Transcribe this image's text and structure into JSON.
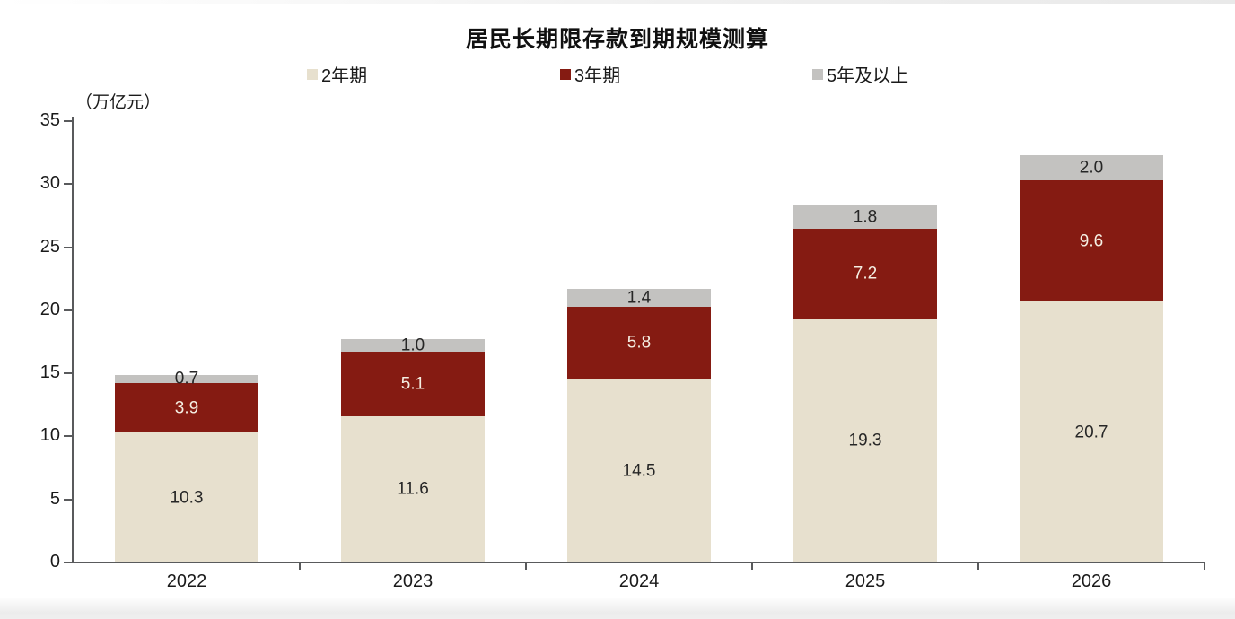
{
  "chart_data": {
    "type": "bar",
    "stacked": true,
    "title": "居民长期限存款到期规模测算",
    "unit_label": "（万亿元）",
    "legend_position": "top",
    "grid": false,
    "categories": [
      "2022",
      "2023",
      "2024",
      "2025",
      "2026"
    ],
    "series": [
      {
        "name": "2年期",
        "color": "#e7e0ce",
        "label_color": "#262626",
        "values": [
          10.3,
          11.6,
          14.5,
          19.3,
          20.7
        ]
      },
      {
        "name": "3年期",
        "color": "#851b12",
        "label_color": "#f5efe3",
        "values": [
          3.9,
          5.1,
          5.8,
          7.2,
          9.6
        ]
      },
      {
        "name": "5年及以上",
        "color": "#c3c2c0",
        "label_color": "#262626",
        "values": [
          0.7,
          1.0,
          1.4,
          1.8,
          2.0
        ]
      }
    ],
    "totals": [
      14.9,
      17.7,
      21.7,
      28.3,
      32.3
    ],
    "ylim": [
      0,
      35
    ],
    "y_ticks": [
      0,
      5,
      10,
      15,
      20,
      25,
      30,
      35
    ],
    "axis_color": "#595a5c"
  }
}
